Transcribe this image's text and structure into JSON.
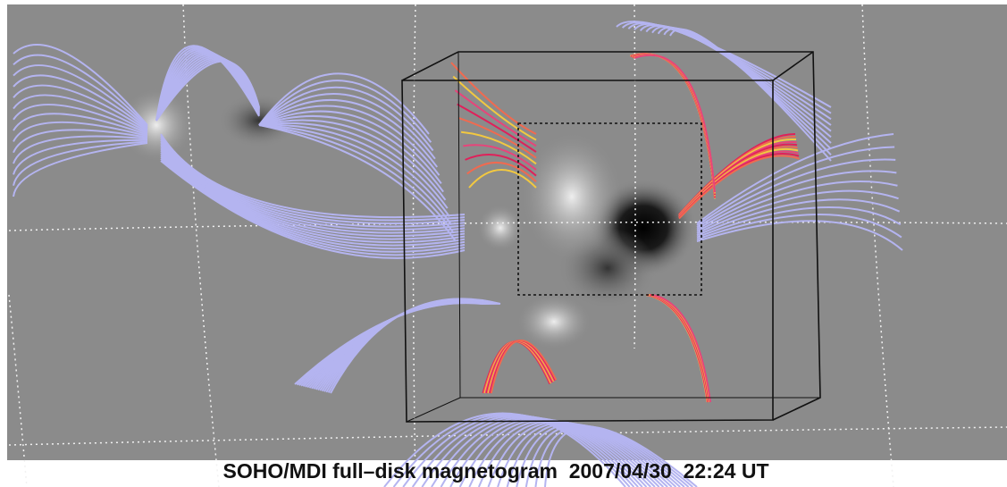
{
  "caption": "SOHO/MDI full–disk magnetogram  2007/04/30  22:24 UT"
}
